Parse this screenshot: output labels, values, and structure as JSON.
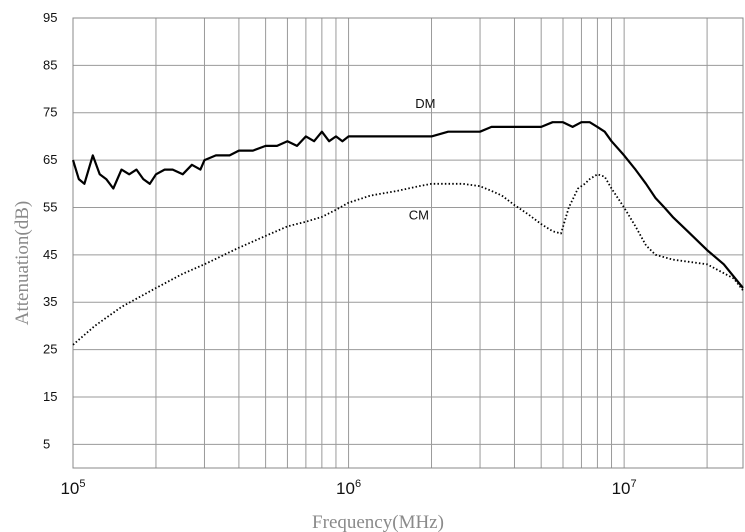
{
  "chart_data": {
    "type": "line",
    "xlabel": "Frequency(MHz)",
    "ylabel": "Attenuation(dB)",
    "xscale": "log",
    "xlim": [
      100000,
      27000000
    ],
    "ylim": [
      0,
      95
    ],
    "grid": true,
    "yticks": [
      5,
      15,
      25,
      35,
      45,
      55,
      65,
      75,
      85,
      95
    ],
    "xticks": [
      {
        "base": "10",
        "exp": "5",
        "value": 100000
      },
      {
        "base": "10",
        "exp": "6",
        "value": 1000000
      },
      {
        "base": "10",
        "exp": "7",
        "value": 10000000
      }
    ],
    "series": [
      {
        "name": "DM",
        "style": "solid",
        "color": "#000000",
        "x": [
          100000,
          105000,
          110000,
          118000,
          125000,
          132000,
          140000,
          150000,
          160000,
          170000,
          180000,
          190000,
          200000,
          215000,
          230000,
          250000,
          270000,
          290000,
          300000,
          330000,
          370000,
          400000,
          450000,
          500000,
          550000,
          600000,
          650000,
          700000,
          750000,
          800000,
          850000,
          900000,
          950000,
          1000000,
          1100000,
          1200000,
          1300000,
          1500000,
          1700000,
          2000000,
          2300000,
          2600000,
          3000000,
          3300000,
          3600000,
          4000000,
          4500000,
          5000000,
          5500000,
          6000000,
          6500000,
          7000000,
          7500000,
          8000000,
          8500000,
          9000000,
          10000000,
          11000000,
          12000000,
          13000000,
          14000000,
          15000000,
          17000000,
          20000000,
          23000000,
          27000000
        ],
        "y": [
          65,
          61,
          60,
          66,
          62,
          61,
          59,
          63,
          62,
          63,
          61,
          60,
          62,
          63,
          63,
          62,
          64,
          63,
          65,
          66,
          66,
          67,
          67,
          68,
          68,
          69,
          68,
          70,
          69,
          71,
          69,
          70,
          69,
          70,
          70,
          70,
          70,
          70,
          70,
          70,
          71,
          71,
          71,
          72,
          72,
          72,
          72,
          72,
          73,
          73,
          72,
          73,
          73,
          72,
          71,
          69,
          66,
          63,
          60,
          57,
          55,
          53,
          50,
          46,
          43,
          38
        ]
      },
      {
        "name": "CM",
        "style": "dotted",
        "color": "#000000",
        "x": [
          100000,
          120000,
          150000,
          200000,
          250000,
          300000,
          400000,
          500000,
          600000,
          700000,
          800000,
          900000,
          1000000,
          1200000,
          1500000,
          1800000,
          2000000,
          2300000,
          2600000,
          3000000,
          3300000,
          3600000,
          4000000,
          4500000,
          5000000,
          5500000,
          5900000,
          6300000,
          6800000,
          7200000,
          7500000,
          8000000,
          8500000,
          9000000,
          10000000,
          11000000,
          12000000,
          13000000,
          15000000,
          20000000,
          25000000,
          27000000
        ],
        "y": [
          26,
          30,
          34,
          38,
          41,
          43,
          46.5,
          49,
          51,
          52,
          53,
          54.5,
          56,
          57.5,
          58.5,
          59.5,
          60,
          60,
          60,
          59.5,
          58.5,
          57.5,
          55.5,
          53.5,
          51.5,
          50,
          49.5,
          55,
          59,
          60,
          61,
          62,
          61.5,
          59,
          55,
          51,
          47,
          45,
          44,
          43,
          40,
          37.5
        ]
      }
    ],
    "annotations": [
      {
        "text": "DM",
        "x": 1900000,
        "y": 76
      },
      {
        "text": "CM",
        "x": 1800000,
        "y": 52.5
      }
    ]
  }
}
